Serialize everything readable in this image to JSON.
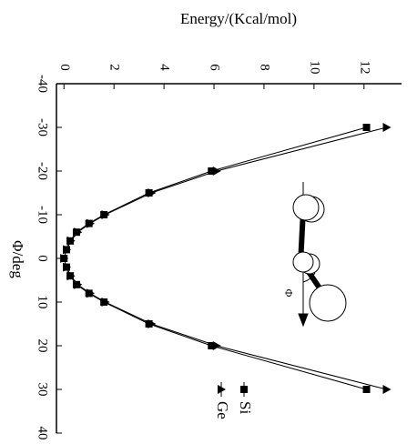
{
  "chart_data": {
    "type": "line",
    "title": "Energy/(Kcal/mol)",
    "x_label": "Φ/deg",
    "annotation": "Φ",
    "x": [
      -30,
      -20,
      -15,
      -10,
      -8,
      -6,
      -4,
      -2,
      0,
      2,
      4,
      6,
      8,
      10,
      15,
      20,
      30
    ],
    "series": [
      {
        "name": "Si",
        "color": "#000000",
        "marker": "square",
        "values": [
          12.1,
          5.9,
          3.4,
          1.6,
          1.0,
          0.5,
          0.25,
          0.1,
          0.0,
          0.1,
          0.25,
          0.5,
          1.0,
          1.6,
          3.4,
          5.9,
          12.1
        ]
      },
      {
        "name": "Ge",
        "color": "#000000",
        "marker": "triangle",
        "values": [
          12.9,
          6.1,
          3.5,
          1.65,
          1.05,
          0.55,
          0.27,
          0.1,
          0.0,
          0.1,
          0.27,
          0.55,
          1.05,
          1.65,
          3.5,
          6.1,
          12.9
        ]
      }
    ],
    "xlim": [
      -40,
      40
    ],
    "xticks": [
      -40,
      -30,
      -20,
      -10,
      0,
      10,
      20,
      30,
      40
    ],
    "ylim": [
      -0.3,
      13.5
    ],
    "yticks": [
      0,
      2,
      4,
      6,
      8,
      10,
      12
    ]
  }
}
